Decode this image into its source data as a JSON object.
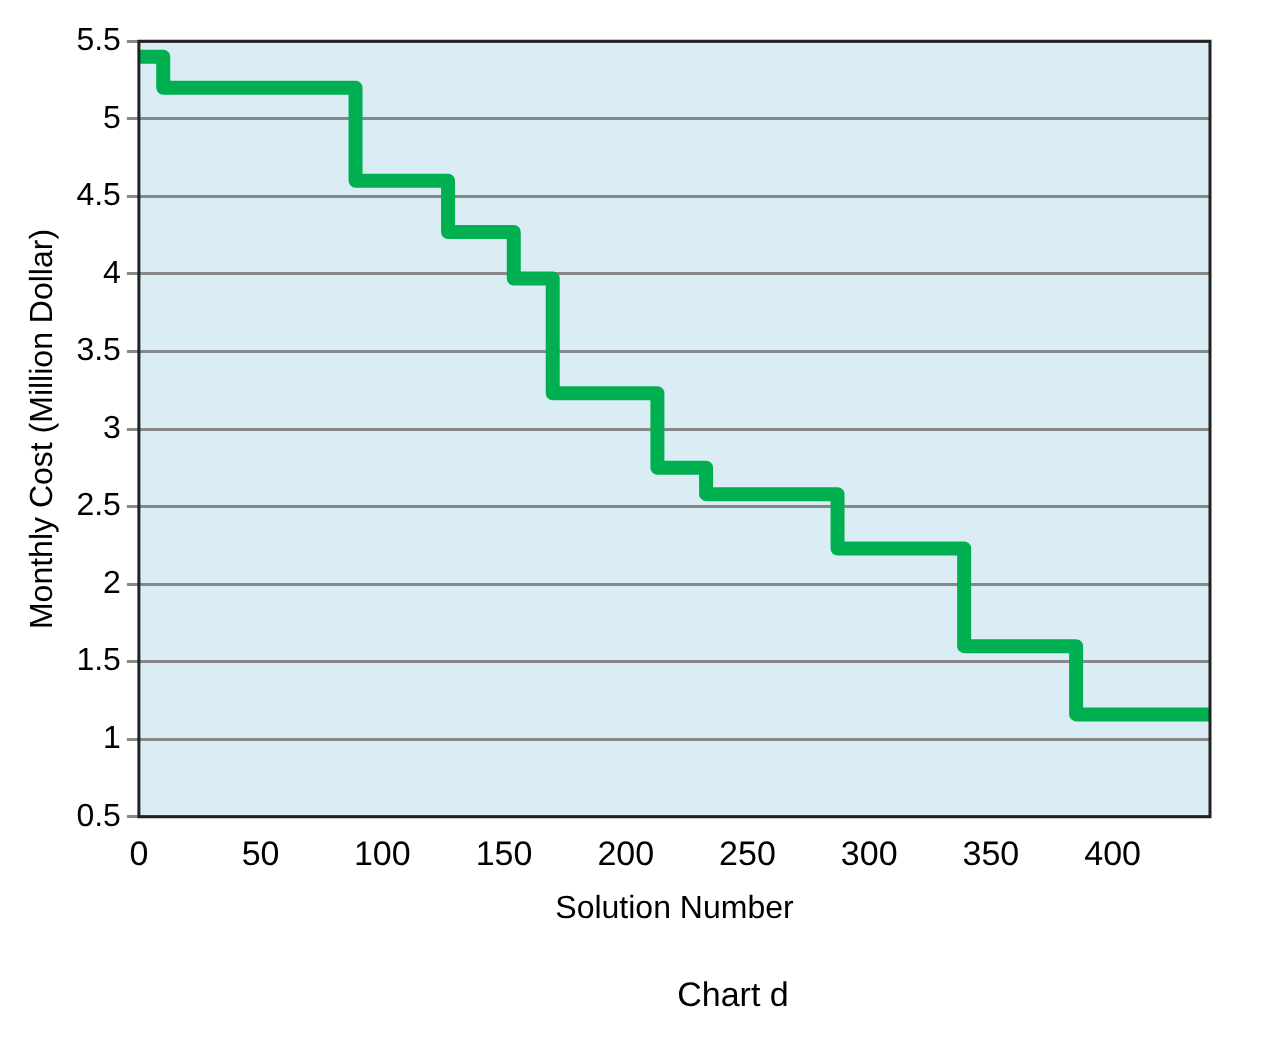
{
  "chart_data": {
    "type": "step",
    "xlabel": "Solution Number",
    "ylabel": "Monthly Cost (Million Dollar)",
    "annotations": [
      "Chart d"
    ],
    "x": [
      0,
      10,
      89,
      127,
      154,
      170,
      213,
      233,
      287,
      339,
      385,
      440
    ],
    "series": [
      {
        "color": "#00b050",
        "values": [
          5.4,
          5.2,
          4.6,
          4.27,
          3.97,
          3.23,
          2.75,
          2.58,
          2.23,
          1.6,
          1.16,
          1.16
        ]
      }
    ],
    "xlim": [
      0,
      440
    ],
    "xticks": [
      0,
      50,
      100,
      150,
      200,
      250,
      300,
      350,
      400
    ],
    "ylim": [
      0.5,
      5.5
    ],
    "yticks": [
      0.5,
      1,
      1.5,
      2,
      2.5,
      3,
      3.5,
      4,
      4.5,
      5,
      5.5
    ],
    "grid": "y",
    "legend": false
  }
}
